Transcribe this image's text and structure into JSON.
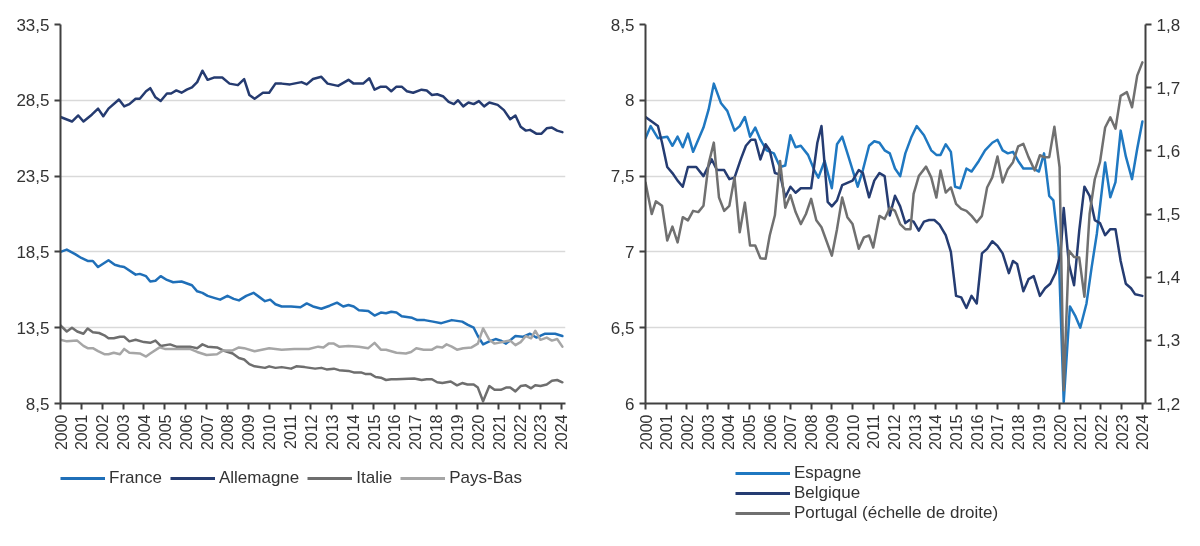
{
  "chart_data": [
    {
      "type": "line",
      "xlim": [
        2000,
        2024.2
      ],
      "ylim": [
        8.5,
        33.5
      ],
      "xticks": [
        2000,
        2001,
        2002,
        2003,
        2004,
        2005,
        2006,
        2007,
        2008,
        2009,
        2010,
        2011,
        2012,
        2013,
        2014,
        2015,
        2016,
        2017,
        2018,
        2019,
        2020,
        2021,
        2022,
        2023,
        2024
      ],
      "yticks": [
        {
          "value": 8.5,
          "label": "8,5"
        },
        {
          "value": 13.5,
          "label": "13,5"
        },
        {
          "value": 18.5,
          "label": "18,5"
        },
        {
          "value": 23.5,
          "label": "23,5"
        },
        {
          "value": 28.5,
          "label": "28,5"
        },
        {
          "value": 33.5,
          "label": "33,5"
        }
      ],
      "grid": "y",
      "legend": "bottom",
      "series": [
        {
          "name": "France",
          "color": "#1f6fb8",
          "x": [
            2000.0,
            2000.3,
            2000.7,
            2001.0,
            2001.3,
            2001.55,
            2001.8,
            2002.3,
            2002.6,
            2002.85,
            2003.05,
            2003.6,
            2003.8,
            2004.1,
            2004.3,
            2004.55,
            2004.8,
            2005.1,
            2005.4,
            2005.8,
            2006.3,
            2006.55,
            2006.8,
            2007.05,
            2007.4,
            2007.65,
            2008.0,
            2008.3,
            2008.55,
            2008.9,
            2009.25,
            2009.55,
            2009.8,
            2010.05,
            2010.3,
            2010.6,
            2011.05,
            2011.5,
            2011.8,
            2012.1,
            2012.5,
            2012.9,
            2013.25,
            2013.55,
            2013.8,
            2014.05,
            2014.3,
            2014.75,
            2015.05,
            2015.35,
            2015.6,
            2015.85,
            2016.1,
            2016.35,
            2016.85,
            2017.1,
            2017.45,
            2017.85,
            2018.25,
            2018.75,
            2019.25,
            2019.5,
            2019.8,
            2020.0,
            2020.25,
            2020.55,
            2020.85,
            2021.1,
            2021.35,
            2021.8,
            2022.15,
            2022.5,
            2022.8,
            2023.2,
            2023.7,
            2024.05
          ],
          "values": [
            18.5,
            18.65,
            18.35,
            18.1,
            17.9,
            17.9,
            17.5,
            17.95,
            17.65,
            17.55,
            17.5,
            17.0,
            17.05,
            16.9,
            16.55,
            16.6,
            16.9,
            16.65,
            16.5,
            16.55,
            16.3,
            15.9,
            15.8,
            15.6,
            15.45,
            15.35,
            15.6,
            15.4,
            15.3,
            15.6,
            15.8,
            15.5,
            15.25,
            15.35,
            15.05,
            14.9,
            14.9,
            14.85,
            15.1,
            14.9,
            14.75,
            14.95,
            15.15,
            14.9,
            15.0,
            14.9,
            14.65,
            14.6,
            14.3,
            14.5,
            14.45,
            14.55,
            14.5,
            14.25,
            14.15,
            14.0,
            14.0,
            13.9,
            13.8,
            14.0,
            13.9,
            13.7,
            13.5,
            12.95,
            12.4,
            12.6,
            12.75,
            12.65,
            12.45,
            12.95,
            12.9,
            13.1,
            12.85,
            13.1,
            13.1,
            12.95
          ]
        },
        {
          "name": "Allemagne",
          "color": "#253b70",
          "x": [
            2000.0,
            2000.55,
            2000.85,
            2001.1,
            2001.5,
            2001.8,
            2002.05,
            2002.3,
            2002.8,
            2003.05,
            2003.3,
            2003.6,
            2003.8,
            2004.1,
            2004.3,
            2004.55,
            2004.8,
            2005.1,
            2005.3,
            2005.55,
            2005.8,
            2006.05,
            2006.3,
            2006.55,
            2006.8,
            2007.05,
            2007.35,
            2007.75,
            2008.1,
            2008.5,
            2008.8,
            2009.05,
            2009.3,
            2009.7,
            2010.0,
            2010.3,
            2010.6,
            2011.0,
            2011.55,
            2011.8,
            2012.1,
            2012.5,
            2012.8,
            2013.3,
            2013.8,
            2014.05,
            2014.5,
            2014.8,
            2015.05,
            2015.35,
            2015.6,
            2015.85,
            2016.1,
            2016.35,
            2016.6,
            2016.9,
            2017.3,
            2017.55,
            2017.8,
            2018.05,
            2018.35,
            2018.6,
            2018.85,
            2019.05,
            2019.3,
            2019.55,
            2019.8,
            2020.05,
            2020.3,
            2020.55,
            2020.95,
            2021.25,
            2021.55,
            2021.8,
            2022.05,
            2022.3,
            2022.5,
            2022.8,
            2023.05,
            2023.3,
            2023.55,
            2023.8,
            2024.05
          ],
          "values": [
            27.4,
            27.1,
            27.5,
            27.1,
            27.55,
            27.95,
            27.45,
            27.95,
            28.55,
            28.1,
            28.25,
            28.6,
            28.6,
            29.1,
            29.3,
            28.7,
            28.45,
            28.95,
            28.95,
            29.15,
            29.0,
            29.2,
            29.35,
            29.7,
            30.45,
            29.85,
            30.0,
            30.0,
            29.6,
            29.5,
            29.9,
            28.85,
            28.6,
            29.0,
            29.0,
            29.6,
            29.6,
            29.55,
            29.7,
            29.55,
            29.9,
            30.05,
            29.6,
            29.45,
            29.85,
            29.6,
            29.6,
            29.95,
            29.2,
            29.4,
            29.4,
            29.1,
            29.4,
            29.4,
            29.1,
            29.0,
            29.2,
            29.15,
            28.85,
            28.9,
            28.75,
            28.4,
            28.25,
            28.5,
            28.1,
            28.35,
            28.25,
            28.45,
            28.1,
            28.35,
            28.2,
            27.85,
            27.25,
            27.5,
            26.75,
            26.5,
            26.55,
            26.3,
            26.3,
            26.65,
            26.7,
            26.5,
            26.4
          ]
        },
        {
          "name": "Italie",
          "color": "#6e6e6e",
          "x": [
            2000.0,
            2000.3,
            2000.55,
            2000.8,
            2001.1,
            2001.3,
            2001.55,
            2001.85,
            2002.1,
            2002.3,
            2002.55,
            2002.85,
            2003.05,
            2003.3,
            2003.6,
            2004.0,
            2004.3,
            2004.55,
            2004.8,
            2005.25,
            2005.55,
            2006.2,
            2006.55,
            2006.8,
            2007.05,
            2007.5,
            2007.8,
            2008.25,
            2008.55,
            2008.8,
            2009.05,
            2009.3,
            2009.8,
            2010.0,
            2010.3,
            2010.6,
            2011.05,
            2011.3,
            2011.7,
            2012.2,
            2012.5,
            2012.75,
            2013.1,
            2013.35,
            2013.8,
            2014.05,
            2014.4,
            2014.6,
            2014.85,
            2015.1,
            2015.35,
            2015.6,
            2015.85,
            2016.1,
            2016.95,
            2017.3,
            2017.55,
            2017.8,
            2018.05,
            2018.3,
            2018.7,
            2019.0,
            2019.25,
            2019.5,
            2019.8,
            2020.0,
            2020.25,
            2020.55,
            2020.8,
            2021.1,
            2021.35,
            2021.55,
            2021.8,
            2022.05,
            2022.3,
            2022.55,
            2022.75,
            2023.0,
            2023.3,
            2023.55,
            2023.8,
            2024.05
          ],
          "values": [
            13.65,
            13.25,
            13.5,
            13.25,
            13.1,
            13.45,
            13.2,
            13.15,
            13.0,
            12.8,
            12.8,
            12.9,
            12.9,
            12.6,
            12.7,
            12.55,
            12.5,
            12.65,
            12.3,
            12.4,
            12.25,
            12.25,
            12.15,
            12.4,
            12.25,
            12.2,
            12.0,
            11.8,
            11.5,
            11.4,
            11.1,
            10.95,
            10.85,
            10.95,
            10.85,
            10.9,
            10.8,
            10.95,
            10.9,
            10.8,
            10.85,
            10.75,
            10.8,
            10.7,
            10.65,
            10.55,
            10.55,
            10.45,
            10.45,
            10.25,
            10.2,
            10.05,
            10.1,
            10.1,
            10.15,
            10.05,
            10.1,
            10.1,
            9.9,
            9.85,
            9.95,
            9.7,
            9.85,
            9.75,
            9.75,
            9.55,
            8.65,
            9.65,
            9.4,
            9.4,
            9.55,
            9.55,
            9.3,
            9.65,
            9.7,
            9.5,
            9.7,
            9.65,
            9.75,
            10.0,
            10.05,
            9.9
          ]
        },
        {
          "name": "Pays-Bas",
          "color": "#a6a6a6",
          "x": [
            2000.0,
            2000.3,
            2000.8,
            2001.1,
            2001.3,
            2001.55,
            2001.8,
            2002.1,
            2002.3,
            2002.55,
            2002.85,
            2003.05,
            2003.3,
            2003.8,
            2004.1,
            2004.3,
            2004.75,
            2005.0,
            2005.7,
            2006.2,
            2006.55,
            2007.0,
            2007.5,
            2007.8,
            2008.25,
            2008.55,
            2008.8,
            2009.3,
            2010.0,
            2010.6,
            2011.2,
            2011.9,
            2012.35,
            2012.6,
            2012.85,
            2013.1,
            2013.35,
            2013.8,
            2014.3,
            2014.75,
            2015.05,
            2015.35,
            2015.6,
            2016.1,
            2016.55,
            2016.8,
            2017.05,
            2017.4,
            2017.8,
            2018.05,
            2018.3,
            2018.5,
            2018.75,
            2019.0,
            2019.3,
            2019.7,
            2020.0,
            2020.25,
            2020.55,
            2020.8,
            2021.35,
            2021.55,
            2021.8,
            2022.05,
            2022.3,
            2022.55,
            2022.75,
            2023.0,
            2023.3,
            2023.55,
            2023.8,
            2024.05
          ],
          "values": [
            12.7,
            12.6,
            12.65,
            12.3,
            12.15,
            12.15,
            11.95,
            11.75,
            11.75,
            11.85,
            11.75,
            12.1,
            11.85,
            11.8,
            11.6,
            11.8,
            12.2,
            12.1,
            12.1,
            12.1,
            11.9,
            11.7,
            11.75,
            12.0,
            12.0,
            12.2,
            12.15,
            11.95,
            12.15,
            12.05,
            12.1,
            12.1,
            12.25,
            12.2,
            12.45,
            12.45,
            12.25,
            12.3,
            12.25,
            12.15,
            12.5,
            12.05,
            12.05,
            11.85,
            11.8,
            11.9,
            12.15,
            12.05,
            12.05,
            12.25,
            12.2,
            12.4,
            12.25,
            12.05,
            12.15,
            12.2,
            12.45,
            13.45,
            12.7,
            12.45,
            12.6,
            12.65,
            12.35,
            12.55,
            12.95,
            12.8,
            13.3,
            12.7,
            12.85,
            12.65,
            12.75,
            12.25
          ]
        }
      ]
    },
    {
      "type": "line",
      "xlim": [
        2000,
        2024.15
      ],
      "ylim": [
        6,
        8.5
      ],
      "y2lim": [
        1.2,
        1.8
      ],
      "xticks": [
        2000,
        2001,
        2002,
        2003,
        2004,
        2005,
        2006,
        2007,
        2008,
        2009,
        2010,
        2011,
        2012,
        2013,
        2014,
        2015,
        2016,
        2017,
        2018,
        2019,
        2020,
        2021,
        2022,
        2023,
        2024
      ],
      "yticks": [
        6,
        {
          "value": 6.5,
          "label": "6,5"
        },
        7,
        {
          "value": 7.5,
          "label": "7,5"
        },
        8,
        {
          "value": 8.5,
          "label": "8,5"
        }
      ],
      "y2ticks": [
        {
          "value": 1.2,
          "label": "1,2"
        },
        {
          "value": 1.3,
          "label": "1,3"
        },
        {
          "value": 1.4,
          "label": "1,4"
        },
        {
          "value": 1.5,
          "label": "1,5"
        },
        {
          "value": 1.6,
          "label": "1,6"
        },
        {
          "value": 1.7,
          "label": "1,7"
        },
        {
          "value": 1.8,
          "label": "1,8"
        }
      ],
      "grid": "y",
      "legend": "bottom",
      "series": [
        {
          "name": "Espagne",
          "color": "#1f78c1",
          "x": [
            2000.0,
            2000.25,
            2000.6,
            2001.05,
            2001.3,
            2001.55,
            2001.8,
            2002.05,
            2002.3,
            2002.8,
            2003.05,
            2003.3,
            2003.65,
            2003.95,
            2004.3,
            2004.55,
            2004.8,
            2005.05,
            2005.3,
            2005.55,
            2005.85,
            2006.2,
            2006.5,
            2006.75,
            2007.0,
            2007.25,
            2007.5,
            2007.85,
            2008.15,
            2008.35,
            2008.65,
            2009.0,
            2009.25,
            2009.5,
            2009.8,
            2010.25,
            2010.5,
            2010.8,
            2011.05,
            2011.3,
            2011.55,
            2011.8,
            2012.05,
            2012.3,
            2012.55,
            2012.85,
            2013.1,
            2013.45,
            2013.8,
            2014.05,
            2014.25,
            2014.5,
            2014.75,
            2014.95,
            2015.2,
            2015.5,
            2015.75,
            2016.1,
            2016.4,
            2016.75,
            2017.0,
            2017.25,
            2017.5,
            2017.75,
            2018.0,
            2018.25,
            2018.75,
            2019.0,
            2019.25,
            2019.5,
            2019.7,
            2019.95,
            2020.2,
            2020.5,
            2020.75,
            2021.0,
            2021.3,
            2021.55,
            2021.8,
            2022.2,
            2022.45,
            2022.7,
            2022.95,
            2023.2,
            2023.5,
            2023.75,
            2024.0
          ],
          "values": [
            7.75,
            7.83,
            7.75,
            7.76,
            7.7,
            7.76,
            7.69,
            7.78,
            7.66,
            7.82,
            7.94,
            8.11,
            7.98,
            7.93,
            7.8,
            7.83,
            7.89,
            7.76,
            7.82,
            7.74,
            7.67,
            7.65,
            7.56,
            7.57,
            7.77,
            7.69,
            7.7,
            7.64,
            7.54,
            7.49,
            7.6,
            7.42,
            7.71,
            7.76,
            7.63,
            7.43,
            7.54,
            7.7,
            7.73,
            7.72,
            7.67,
            7.65,
            7.55,
            7.5,
            7.65,
            7.76,
            7.83,
            7.77,
            7.67,
            7.64,
            7.64,
            7.71,
            7.66,
            7.43,
            7.42,
            7.55,
            7.53,
            7.6,
            7.67,
            7.72,
            7.74,
            7.67,
            7.65,
            7.66,
            7.6,
            7.55,
            7.55,
            7.53,
            7.65,
            7.37,
            7.34,
            7.03,
            6.01,
            6.64,
            6.58,
            6.5,
            6.66,
            6.9,
            7.12,
            7.59,
            7.36,
            7.46,
            7.8,
            7.63,
            7.48,
            7.68,
            7.86
          ]
        },
        {
          "name": "Belgique",
          "color": "#253c72",
          "x": [
            2000.0,
            2000.3,
            2000.6,
            2000.8,
            2001.05,
            2001.3,
            2001.55,
            2001.8,
            2002.05,
            2002.45,
            2002.8,
            2003.2,
            2003.45,
            2003.8,
            2004.05,
            2004.3,
            2004.6,
            2004.85,
            2005.1,
            2005.3,
            2005.55,
            2005.8,
            2006.0,
            2006.25,
            2006.5,
            2006.75,
            2007.0,
            2007.25,
            2007.5,
            2008.0,
            2008.3,
            2008.5,
            2008.8,
            2009.0,
            2009.25,
            2009.5,
            2010.0,
            2010.3,
            2010.5,
            2010.8,
            2011.05,
            2011.3,
            2011.55,
            2011.8,
            2012.05,
            2012.3,
            2012.55,
            2012.75,
            2012.95,
            2013.2,
            2013.45,
            2013.7,
            2013.95,
            2014.2,
            2014.5,
            2014.75,
            2015.0,
            2015.25,
            2015.5,
            2015.75,
            2016.0,
            2016.25,
            2016.5,
            2016.75,
            2017.0,
            2017.25,
            2017.55,
            2017.75,
            2017.95,
            2018.25,
            2018.5,
            2018.75,
            2019.05,
            2019.3,
            2019.55,
            2019.8,
            2020.05,
            2020.2,
            2020.45,
            2020.7,
            2020.95,
            2021.2,
            2021.45,
            2021.7,
            2021.95,
            2022.2,
            2022.45,
            2022.7,
            2022.95,
            2023.2,
            2023.45,
            2023.65,
            2024.0
          ],
          "values": [
            7.89,
            7.86,
            7.83,
            7.72,
            7.56,
            7.52,
            7.47,
            7.43,
            7.56,
            7.56,
            7.5,
            7.61,
            7.54,
            7.54,
            7.48,
            7.49,
            7.61,
            7.7,
            7.74,
            7.74,
            7.61,
            7.71,
            7.67,
            7.52,
            7.51,
            7.36,
            7.43,
            7.39,
            7.42,
            7.42,
            7.72,
            7.83,
            7.33,
            7.3,
            7.34,
            7.44,
            7.47,
            7.54,
            7.52,
            7.36,
            7.47,
            7.52,
            7.5,
            7.24,
            7.37,
            7.3,
            7.19,
            7.21,
            7.2,
            7.14,
            7.2,
            7.21,
            7.21,
            7.18,
            7.11,
            7.0,
            6.71,
            6.7,
            6.63,
            6.71,
            6.66,
            6.99,
            7.02,
            7.07,
            7.04,
            6.99,
            6.86,
            6.94,
            6.92,
            6.74,
            6.82,
            6.84,
            6.71,
            6.76,
            6.79,
            6.86,
            6.99,
            7.29,
            6.92,
            6.78,
            7.14,
            7.43,
            7.37,
            7.21,
            7.19,
            7.11,
            7.15,
            7.15,
            6.94,
            6.79,
            6.76,
            6.72,
            6.71
          ]
        },
        {
          "name": "Portugal (échelle de droite)",
          "color": "#707070",
          "axis": "y2",
          "x": [
            2000.0,
            2000.3,
            2000.5,
            2000.8,
            2001.05,
            2001.3,
            2001.55,
            2001.8,
            2002.05,
            2002.3,
            2002.55,
            2002.8,
            2003.05,
            2003.3,
            2003.55,
            2003.8,
            2004.05,
            2004.3,
            2004.55,
            2004.8,
            2005.05,
            2005.3,
            2005.55,
            2005.8,
            2006.0,
            2006.25,
            2006.5,
            2006.75,
            2007.0,
            2007.25,
            2007.5,
            2007.75,
            2008.0,
            2008.25,
            2008.5,
            2009.0,
            2009.25,
            2009.5,
            2009.75,
            2010.0,
            2010.3,
            2010.55,
            2010.8,
            2011.0,
            2011.3,
            2011.55,
            2011.8,
            2012.05,
            2012.3,
            2012.55,
            2012.8,
            2012.95,
            2013.2,
            2013.55,
            2013.8,
            2014.05,
            2014.25,
            2014.5,
            2014.75,
            2015.0,
            2015.25,
            2015.5,
            2015.75,
            2016.0,
            2016.25,
            2016.5,
            2016.75,
            2017.0,
            2017.25,
            2017.5,
            2017.75,
            2018.0,
            2018.25,
            2018.5,
            2018.8,
            2019.05,
            2019.25,
            2019.5,
            2019.75,
            2020.0,
            2020.2,
            2020.45,
            2020.7,
            2020.95,
            2021.2,
            2021.45,
            2021.7,
            2021.95,
            2022.2,
            2022.45,
            2022.7,
            2022.95,
            2023.25,
            2023.5,
            2023.75,
            2024.0
          ],
          "values": [
            1.55,
            1.5,
            1.52,
            1.513,
            1.458,
            1.48,
            1.455,
            1.495,
            1.49,
            1.505,
            1.503,
            1.513,
            1.58,
            1.613,
            1.526,
            1.505,
            1.513,
            1.558,
            1.471,
            1.518,
            1.45,
            1.45,
            1.43,
            1.429,
            1.466,
            1.498,
            1.584,
            1.51,
            1.53,
            1.503,
            1.484,
            1.5,
            1.524,
            1.49,
            1.479,
            1.434,
            1.476,
            1.526,
            1.495,
            1.484,
            1.445,
            1.463,
            1.466,
            1.447,
            1.497,
            1.492,
            1.51,
            1.505,
            1.484,
            1.476,
            1.476,
            1.532,
            1.56,
            1.575,
            1.558,
            1.526,
            1.569,
            1.534,
            1.542,
            1.516,
            1.508,
            1.505,
            1.497,
            1.487,
            1.497,
            1.542,
            1.558,
            1.591,
            1.55,
            1.571,
            1.582,
            1.607,
            1.611,
            1.59,
            1.569,
            1.593,
            1.59,
            1.59,
            1.638,
            1.574,
            1.221,
            1.442,
            1.432,
            1.431,
            1.369,
            1.5,
            1.555,
            1.582,
            1.637,
            1.653,
            1.635,
            1.687,
            1.693,
            1.669,
            1.719,
            1.74
          ]
        }
      ]
    }
  ]
}
